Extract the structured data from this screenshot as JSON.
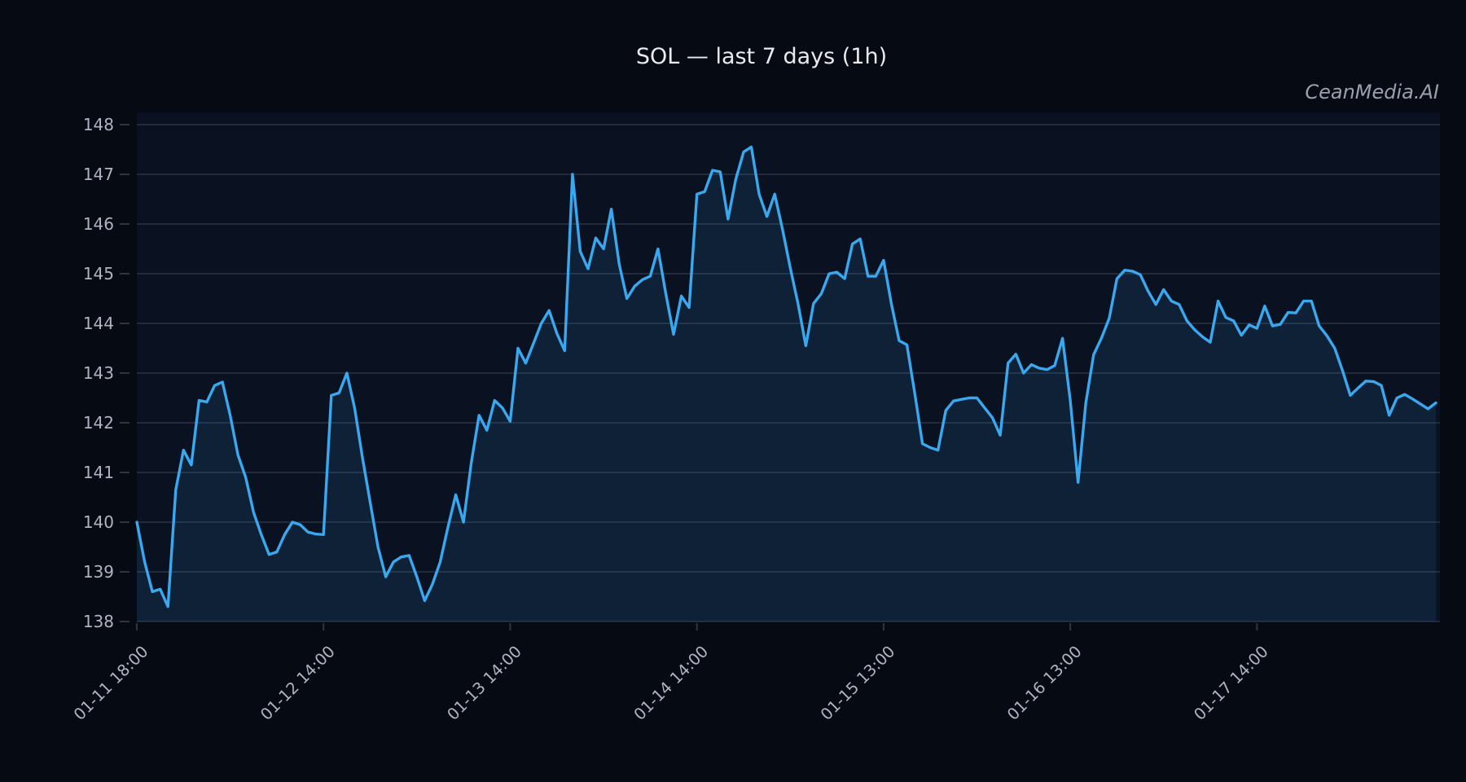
{
  "chart_data": {
    "type": "line",
    "title": "SOL — last 7 days (1h)",
    "watermark": "CeanMedia.AI",
    "xlabel": "",
    "ylabel": "",
    "ylim": [
      138,
      148
    ],
    "y_ticks": [
      138,
      139,
      140,
      141,
      142,
      143,
      144,
      145,
      146,
      147,
      148
    ],
    "x_tick_labels": [
      "01-11 18:00",
      "01-12 14:00",
      "01-13 14:00",
      "01-14 14:00",
      "01-15 13:00",
      "01-16 13:00",
      "01-17 14:00"
    ],
    "x_tick_indices": [
      0,
      24,
      48,
      72,
      96,
      120,
      144
    ],
    "grid": "horizontal",
    "legend_position": "none",
    "colors": {
      "background": "#060a13",
      "plot_background": "#0a1120",
      "line": "#3aa8ef",
      "area_fill": "rgba(58,168,239,0.11)",
      "grid_line": "rgba(150,165,190,0.28)",
      "title_text": "#e8eaee",
      "tick_text": "#aeb4c2",
      "watermark_text": "#9aa0ae"
    },
    "values": [
      140.0,
      139.2,
      138.6,
      138.65,
      138.3,
      140.65,
      141.45,
      141.15,
      142.45,
      142.42,
      142.75,
      142.82,
      142.15,
      141.35,
      140.9,
      140.2,
      139.75,
      139.35,
      139.4,
      139.75,
      140.0,
      139.95,
      139.8,
      139.76,
      139.75,
      142.55,
      142.6,
      143.0,
      142.3,
      141.3,
      140.4,
      139.5,
      138.9,
      139.2,
      139.3,
      139.33,
      138.9,
      138.42,
      138.75,
      139.2,
      139.9,
      140.55,
      140.0,
      141.2,
      142.15,
      141.85,
      142.45,
      142.3,
      142.03,
      143.5,
      143.2,
      143.6,
      144.0,
      144.26,
      143.8,
      143.45,
      147.0,
      145.45,
      145.1,
      145.72,
      145.5,
      146.3,
      145.2,
      144.5,
      144.75,
      144.88,
      144.95,
      145.5,
      144.6,
      143.78,
      144.55,
      144.32,
      146.6,
      146.65,
      147.08,
      147.05,
      146.1,
      146.9,
      147.45,
      147.55,
      146.6,
      146.15,
      146.6,
      145.9,
      145.12,
      144.4,
      143.55,
      144.4,
      144.6,
      145.0,
      145.03,
      144.9,
      145.6,
      145.7,
      144.95,
      144.95,
      145.27,
      144.4,
      143.65,
      143.57,
      142.6,
      141.58,
      141.5,
      141.45,
      142.25,
      142.44,
      142.47,
      142.5,
      142.5,
      142.3,
      142.1,
      141.75,
      143.2,
      143.38,
      143.0,
      143.17,
      143.1,
      143.07,
      143.15,
      143.7,
      142.45,
      140.8,
      142.4,
      143.37,
      143.7,
      144.1,
      144.9,
      145.07,
      145.05,
      144.98,
      144.65,
      144.38,
      144.68,
      144.45,
      144.38,
      144.05,
      143.87,
      143.73,
      143.62,
      144.45,
      144.12,
      144.05,
      143.76,
      143.97,
      143.9,
      144.35,
      143.95,
      143.98,
      144.22,
      144.21,
      144.45,
      144.45,
      143.95,
      143.75,
      143.5,
      143.05,
      142.55,
      142.7,
      142.84,
      142.83,
      142.75,
      142.15,
      142.5,
      142.57,
      142.48,
      142.38,
      142.28,
      142.4
    ]
  }
}
